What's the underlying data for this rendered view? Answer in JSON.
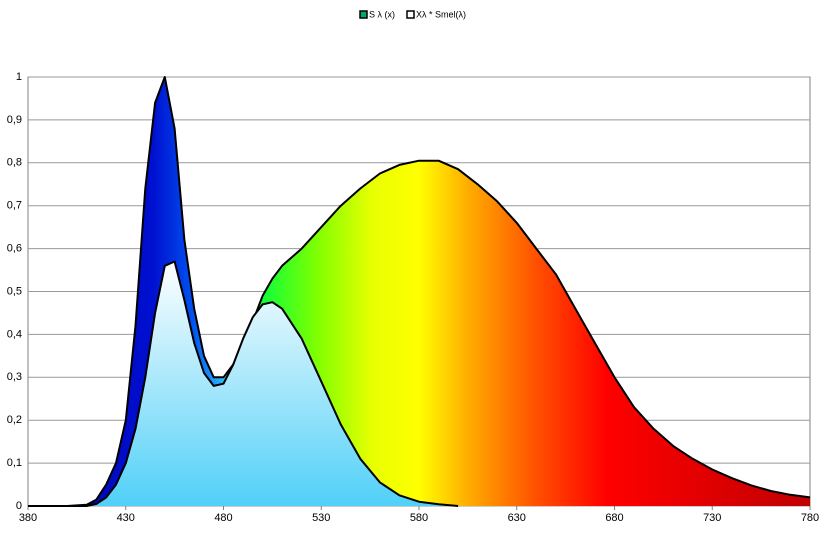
{
  "chart_data": {
    "type": "area",
    "legend_position": "top",
    "grid": true,
    "xlim": [
      380,
      780
    ],
    "xticks": [
      380,
      430,
      480,
      530,
      580,
      630,
      680,
      730,
      780
    ],
    "ylim": [
      0,
      1
    ],
    "yticks": [
      0,
      {
        "value": 0.1,
        "label": "0,1"
      },
      {
        "value": 0.2,
        "label": "0,2"
      },
      {
        "value": 0.3,
        "label": "0,3"
      },
      {
        "value": 0.4,
        "label": "0,4"
      },
      {
        "value": 0.5,
        "label": "0,5"
      },
      {
        "value": 0.6,
        "label": "0,6"
      },
      {
        "value": 0.7,
        "label": "0,7"
      },
      {
        "value": 0.8,
        "label": "0,8"
      },
      {
        "value": 0.9,
        "label": "0,9"
      },
      1
    ],
    "series": [
      {
        "name": "S λ (x)",
        "color": "#000000",
        "x": [
          380,
          400,
          410,
          415,
          420,
          425,
          430,
          435,
          440,
          445,
          450,
          455,
          460,
          465,
          470,
          475,
          480,
          485,
          490,
          495,
          500,
          505,
          510,
          520,
          530,
          540,
          550,
          560,
          570,
          580,
          590,
          600,
          610,
          620,
          630,
          640,
          650,
          660,
          670,
          680,
          690,
          700,
          710,
          720,
          730,
          740,
          750,
          760,
          770,
          780
        ],
        "values": [
          0,
          0,
          0.003,
          0.015,
          0.05,
          0.1,
          0.2,
          0.42,
          0.74,
          0.94,
          1.0,
          0.88,
          0.62,
          0.46,
          0.35,
          0.3,
          0.3,
          0.33,
          0.38,
          0.43,
          0.49,
          0.53,
          0.56,
          0.6,
          0.65,
          0.7,
          0.74,
          0.775,
          0.795,
          0.805,
          0.805,
          0.785,
          0.75,
          0.71,
          0.66,
          0.6,
          0.54,
          0.46,
          0.38,
          0.3,
          0.23,
          0.18,
          0.14,
          0.11,
          0.085,
          0.065,
          0.048,
          0.035,
          0.026,
          0.02
        ]
      },
      {
        "name": "Xλ * Smel(λ)",
        "color": "#000000",
        "x": [
          380,
          400,
          410,
          415,
          420,
          425,
          430,
          435,
          440,
          445,
          450,
          455,
          460,
          465,
          470,
          475,
          480,
          485,
          490,
          495,
          500,
          505,
          510,
          520,
          530,
          540,
          550,
          560,
          570,
          580,
          590,
          600
        ],
        "values": [
          0,
          0,
          0,
          0.005,
          0.02,
          0.05,
          0.1,
          0.18,
          0.3,
          0.45,
          0.56,
          0.57,
          0.48,
          0.38,
          0.31,
          0.28,
          0.285,
          0.33,
          0.39,
          0.44,
          0.47,
          0.475,
          0.46,
          0.39,
          0.29,
          0.19,
          0.11,
          0.055,
          0.025,
          0.01,
          0.004,
          0
        ]
      }
    ]
  }
}
